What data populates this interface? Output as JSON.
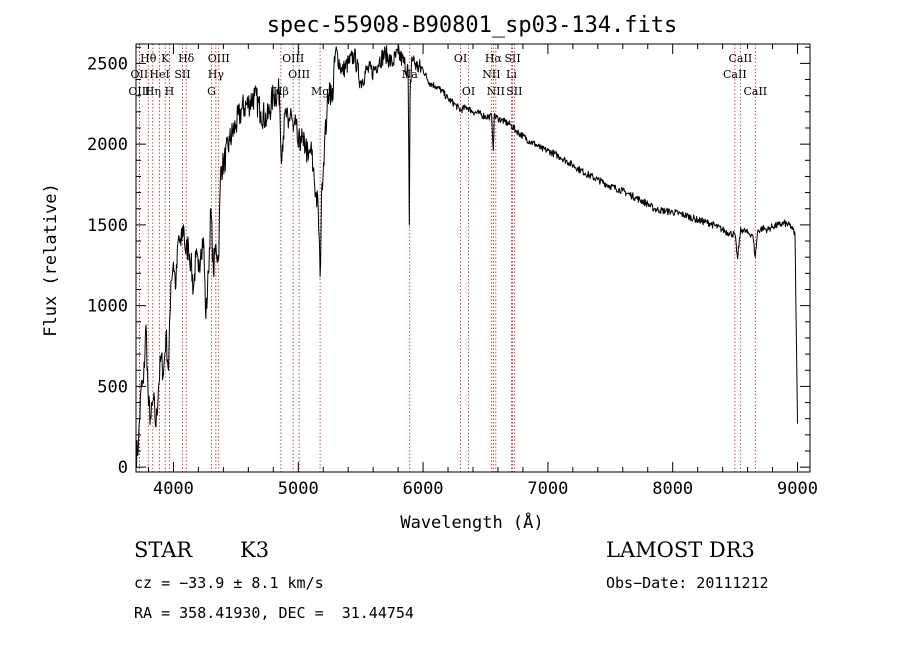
{
  "chart_data": {
    "type": "line",
    "title": "spec-55908-B90801_sp03-134.fits",
    "xlabel": "Wavelength (Å)",
    "ylabel": "Flux (relative)",
    "xlim": [
      3700,
      9100
    ],
    "ylim": [
      -30,
      2620
    ],
    "xticks": [
      4000,
      5000,
      6000,
      7000,
      8000,
      9000
    ],
    "yticks": [
      0,
      500,
      1000,
      1500,
      2000,
      2500
    ],
    "grid": false,
    "series": [
      {
        "name": "flux",
        "x": [
          3700,
          3720,
          3740,
          3760,
          3780,
          3800,
          3820,
          3840,
          3860,
          3880,
          3900,
          3920,
          3940,
          3960,
          3980,
          4000,
          4020,
          4040,
          4060,
          4080,
          4100,
          4120,
          4140,
          4160,
          4180,
          4200,
          4220,
          4240,
          4260,
          4280,
          4300,
          4320,
          4340,
          4360,
          4380,
          4400,
          4450,
          4500,
          4550,
          4600,
          4650,
          4700,
          4750,
          4800,
          4850,
          4861,
          4880,
          4900,
          4920,
          4940,
          4960,
          4980,
          5000,
          5020,
          5040,
          5060,
          5080,
          5100,
          5120,
          5140,
          5160,
          5175,
          5190,
          5210,
          5230,
          5250,
          5270,
          5300,
          5350,
          5400,
          5450,
          5500,
          5550,
          5600,
          5650,
          5700,
          5750,
          5800,
          5850,
          5880,
          5890,
          5896,
          5910,
          5950,
          6000,
          6050,
          6100,
          6150,
          6200,
          6250,
          6300,
          6350,
          6400,
          6450,
          6500,
          6550,
          6563,
          6570,
          6600,
          6650,
          6700,
          6750,
          6800,
          6850,
          6900,
          6950,
          7000,
          7100,
          7200,
          7300,
          7400,
          7500,
          7600,
          7700,
          7800,
          7850,
          7900,
          8000,
          8100,
          8200,
          8300,
          8400,
          8450,
          8498,
          8520,
          8542,
          8560,
          8600,
          8640,
          8662,
          8680,
          8720,
          8760,
          8800,
          8850,
          8900,
          8950,
          8980,
          9000
        ],
        "values": [
          50,
          150,
          480,
          520,
          880,
          380,
          300,
          420,
          250,
          500,
          680,
          580,
          820,
          600,
          1150,
          1270,
          1120,
          1420,
          1370,
          1500,
          1320,
          1380,
          1270,
          1100,
          1300,
          1210,
          1350,
          1420,
          920,
          1200,
          1600,
          1200,
          1380,
          1280,
          1860,
          1870,
          2020,
          2120,
          2220,
          2250,
          2300,
          2200,
          2150,
          2300,
          2320,
          1950,
          2050,
          2200,
          2100,
          2220,
          2080,
          2120,
          1980,
          2050,
          1990,
          2000,
          1900,
          1970,
          1850,
          1700,
          1600,
          1180,
          1760,
          2000,
          2200,
          2380,
          2260,
          2580,
          2450,
          2500,
          2550,
          2380,
          2460,
          2450,
          2520,
          2560,
          2500,
          2560,
          2500,
          2450,
          1500,
          2300,
          2540,
          2480,
          2460,
          2380,
          2360,
          2330,
          2280,
          2250,
          2210,
          2230,
          2200,
          2190,
          2170,
          2170,
          1960,
          2170,
          2160,
          2140,
          2120,
          2080,
          2050,
          2020,
          2000,
          1970,
          1960,
          1920,
          1870,
          1820,
          1780,
          1740,
          1710,
          1670,
          1630,
          1600,
          1590,
          1580,
          1560,
          1530,
          1510,
          1470,
          1450,
          1440,
          1290,
          1460,
          1470,
          1450,
          1440,
          1300,
          1460,
          1480,
          1470,
          1490,
          1500,
          1510,
          1490,
          1440,
          270
        ]
      }
    ],
    "line_markers": [
      {
        "label": "Hθ",
        "wavelength": 3798,
        "row": 0
      },
      {
        "label": "K",
        "wavelength": 3934,
        "row": 0
      },
      {
        "label": "Hδ",
        "wavelength": 4102,
        "row": 0
      },
      {
        "label": "OIII",
        "wavelength": 4363,
        "row": 0
      },
      {
        "label": "OIII",
        "wavelength": 4959,
        "row": 0
      },
      {
        "label": "OI",
        "wavelength": 6300,
        "row": 0
      },
      {
        "label": "Hα",
        "wavelength": 6563,
        "row": 0
      },
      {
        "label": "SII",
        "wavelength": 6717,
        "row": 0
      },
      {
        "label": "CaII",
        "wavelength": 8542,
        "row": 0
      },
      {
        "label": "OII",
        "wavelength": 3727,
        "row": 1
      },
      {
        "label": "HeI",
        "wavelength": 3889,
        "row": 1
      },
      {
        "label": "SII",
        "wavelength": 4072,
        "row": 1
      },
      {
        "label": "Hγ",
        "wavelength": 4340,
        "row": 1
      },
      {
        "label": "OIII",
        "wavelength": 5007,
        "row": 1
      },
      {
        "label": "Na",
        "wavelength": 5893,
        "row": 1
      },
      {
        "label": "NII",
        "wavelength": 6548,
        "row": 1
      },
      {
        "label": "Li",
        "wavelength": 6708,
        "row": 1
      },
      {
        "label": "CaII",
        "wavelength": 8498,
        "row": 1
      },
      {
        "label": "OIII",
        "wavelength": 3727,
        "row": 2
      },
      {
        "label": "Hη",
        "wavelength": 3835,
        "row": 2
      },
      {
        "label": "H",
        "wavelength": 3968,
        "row": 2
      },
      {
        "label": "G",
        "wavelength": 4305,
        "row": 2
      },
      {
        "label": "Hβ",
        "wavelength": 4861,
        "row": 2
      },
      {
        "label": "Mg",
        "wavelength": 5175,
        "row": 2
      },
      {
        "label": "OI",
        "wavelength": 6364,
        "row": 2
      },
      {
        "label": "NII",
        "wavelength": 6583,
        "row": 2
      },
      {
        "label": "SII",
        "wavelength": 6731,
        "row": 2
      },
      {
        "label": "CaII",
        "wavelength": 8662,
        "row": 2
      }
    ],
    "colors": {
      "spectrum": "#000000",
      "markers": "#b22222"
    }
  },
  "info": {
    "object_class": "STAR",
    "subclass": "K3",
    "survey": "LAMOST DR3",
    "cz": "cz = −33.9 ± 8.1 km/s",
    "obs_date": "Obs−Date: 20111212",
    "coords": "RA = 358.41930, DEC =  31.44754"
  }
}
